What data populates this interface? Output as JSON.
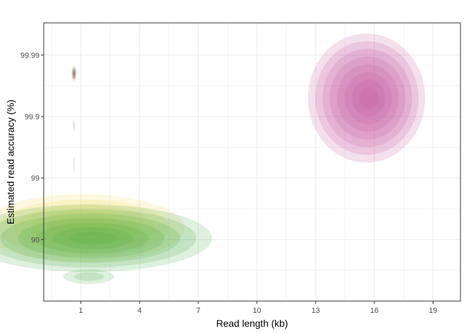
{
  "chart_data": {
    "type": "density-contour",
    "xlabel": "Read length (kb)",
    "ylabel": "Estimated read accuracy (%)",
    "x_ticks": [
      1,
      4,
      7,
      10,
      13,
      16,
      19
    ],
    "x_tick_labels": [
      "1",
      "4",
      "7",
      "10",
      "13",
      "16",
      "19"
    ],
    "y_ticks": [
      90,
      99,
      99.9,
      99.99
    ],
    "y_tick_labels": [
      "90",
      "99",
      "99.9",
      "99.99"
    ],
    "y_scale": "phred (-log10 of error rate)",
    "xlim": [
      -0.9,
      20.4
    ],
    "ylim": [
      0,
      99.997
    ],
    "grid": true,
    "legend": "none",
    "series": [
      {
        "color": "#b8a99a",
        "regions": [
          {
            "cx": 0.65,
            "cy": 99.98,
            "rx": 0.14,
            "ry_q": 0.13,
            "levels": 6
          },
          {
            "cx": 0.65,
            "cy": 99.86,
            "rx": 0.07,
            "ry_q": 0.08,
            "levels": 2
          },
          {
            "cx": 0.65,
            "cy": 99.4,
            "rx": 0.05,
            "ry_q": 0.12,
            "levels": 1
          }
        ]
      },
      {
        "color": "#4a2800",
        "regions": [
          {
            "cx": 0.65,
            "cy": 99.98,
            "rx": 0.09,
            "ry_q": 0.09,
            "levels": 2
          }
        ]
      },
      {
        "color": "#f2d94e",
        "regions": [
          {
            "cx": 1.1,
            "cy": 93.5,
            "rx": 5.2,
            "ry_q": 0.55,
            "levels": 6
          }
        ]
      },
      {
        "color": "#4aae4a",
        "regions": [
          {
            "cx": 1.4,
            "cy": 90.5,
            "rx": 6.3,
            "ry_q": 0.55,
            "levels": 7
          },
          {
            "cx": 1.4,
            "cy": 60,
            "rx": 1.3,
            "ry_q": 0.12,
            "levels": 2
          }
        ]
      },
      {
        "color": "#c0559a",
        "regions": [
          {
            "cx": 15.6,
            "cy": 99.95,
            "rx": 3.0,
            "ry_q": 1.05,
            "levels": 8
          }
        ]
      }
    ]
  }
}
